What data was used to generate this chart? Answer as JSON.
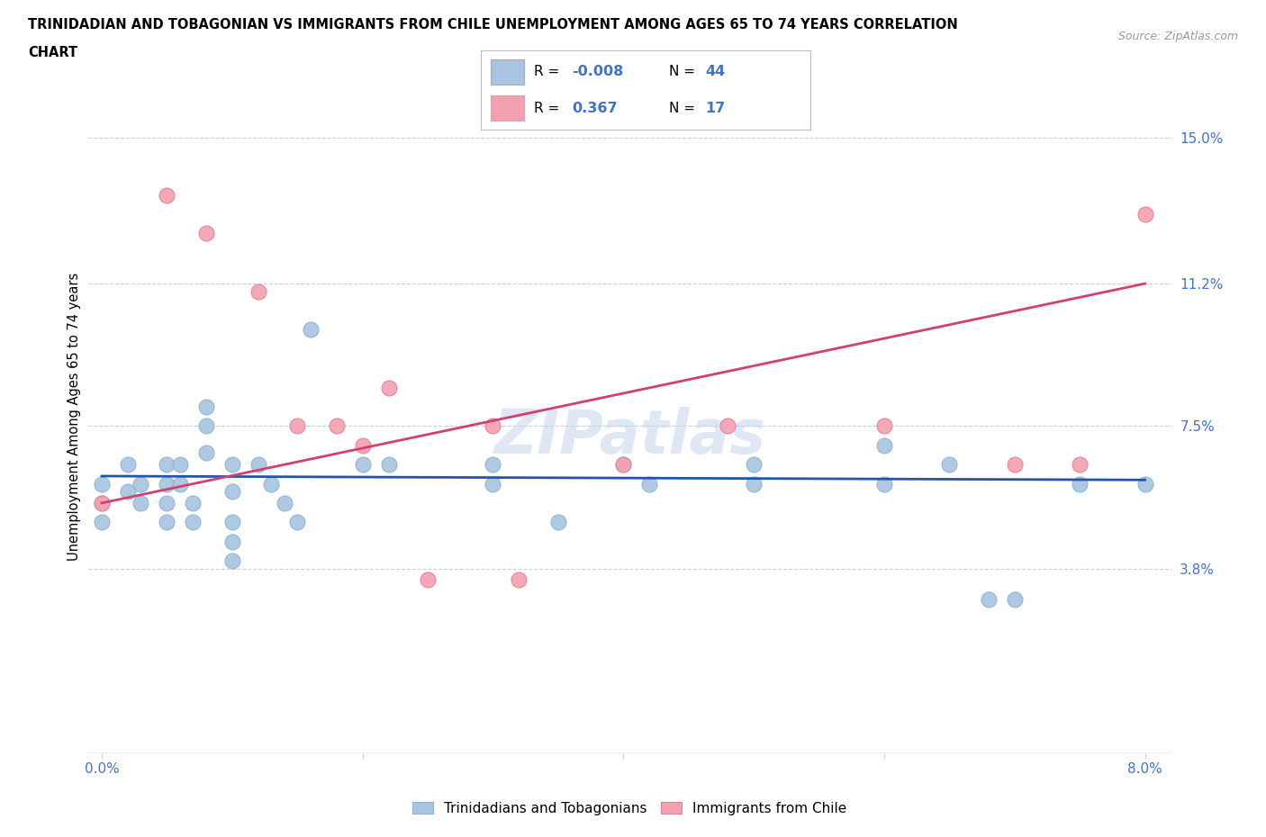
{
  "title_line1": "TRINIDADIAN AND TOBAGONIAN VS IMMIGRANTS FROM CHILE UNEMPLOYMENT AMONG AGES 65 TO 74 YEARS CORRELATION",
  "title_line2": "CHART",
  "source": "Source: ZipAtlas.com",
  "ylabel": "Unemployment Among Ages 65 to 74 years",
  "xlim": [
    -0.001,
    0.082
  ],
  "ylim": [
    -0.01,
    0.165
  ],
  "xticks": [
    0.0,
    0.02,
    0.04,
    0.06,
    0.08
  ],
  "xtick_labels": [
    "0.0%",
    "",
    "",
    "",
    "8.0%"
  ],
  "ytick_labels_right": [
    "3.8%",
    "7.5%",
    "11.2%",
    "15.0%"
  ],
  "ytick_vals_right": [
    0.038,
    0.075,
    0.112,
    0.15
  ],
  "blue_color": "#a8c4e0",
  "pink_color": "#f4a0b0",
  "blue_line_color": "#2255aa",
  "pink_line_color": "#d04070",
  "legend_R_color": "#4472c4",
  "watermark": "ZIPatlas",
  "blue_scatter_x": [
    0.0,
    0.0,
    0.0,
    0.002,
    0.002,
    0.003,
    0.003,
    0.005,
    0.005,
    0.005,
    0.005,
    0.006,
    0.006,
    0.007,
    0.007,
    0.008,
    0.008,
    0.008,
    0.01,
    0.01,
    0.01,
    0.01,
    0.01,
    0.012,
    0.013,
    0.014,
    0.015,
    0.016,
    0.02,
    0.022,
    0.03,
    0.03,
    0.035,
    0.04,
    0.042,
    0.05,
    0.05,
    0.06,
    0.06,
    0.065,
    0.068,
    0.07,
    0.075,
    0.08
  ],
  "blue_scatter_y": [
    0.06,
    0.055,
    0.05,
    0.065,
    0.058,
    0.06,
    0.055,
    0.065,
    0.06,
    0.055,
    0.05,
    0.065,
    0.06,
    0.055,
    0.05,
    0.08,
    0.075,
    0.068,
    0.065,
    0.058,
    0.05,
    0.045,
    0.04,
    0.065,
    0.06,
    0.055,
    0.05,
    0.1,
    0.065,
    0.065,
    0.065,
    0.06,
    0.05,
    0.065,
    0.06,
    0.065,
    0.06,
    0.07,
    0.06,
    0.065,
    0.03,
    0.03,
    0.06,
    0.06
  ],
  "pink_scatter_x": [
    0.0,
    0.005,
    0.008,
    0.012,
    0.015,
    0.018,
    0.02,
    0.022,
    0.025,
    0.03,
    0.032,
    0.04,
    0.048,
    0.06,
    0.07,
    0.075,
    0.08
  ],
  "pink_scatter_y": [
    0.055,
    0.135,
    0.125,
    0.11,
    0.075,
    0.075,
    0.07,
    0.085,
    0.035,
    0.075,
    0.035,
    0.065,
    0.075,
    0.075,
    0.065,
    0.065,
    0.13
  ],
  "blue_line_x0": 0.0,
  "blue_line_x1": 0.08,
  "blue_line_y0": 0.062,
  "blue_line_y1": 0.061,
  "pink_line_x0": 0.0,
  "pink_line_x1": 0.08,
  "pink_line_y0": 0.055,
  "pink_line_y1": 0.112
}
